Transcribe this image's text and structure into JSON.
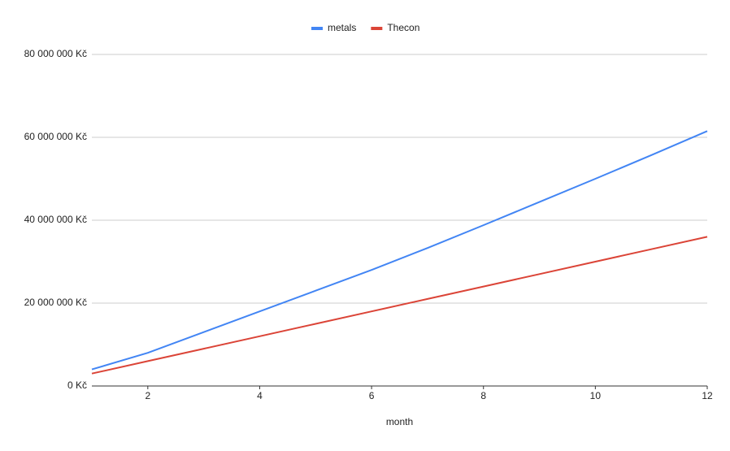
{
  "chart_data": {
    "type": "line",
    "x": [
      1,
      2,
      3,
      4,
      5,
      6,
      7,
      8,
      9,
      10,
      11,
      12
    ],
    "series": [
      {
        "name": "metals",
        "color": "#4285f4",
        "values": [
          4000000,
          8000000,
          13000000,
          18000000,
          23000000,
          28000000,
          33300000,
          38800000,
          44400000,
          50000000,
          55700000,
          61500000
        ]
      },
      {
        "name": "Thecon",
        "color": "#db4437",
        "values": [
          3000000,
          6000000,
          9000000,
          12000000,
          15000000,
          18000000,
          21000000,
          24000000,
          27000000,
          30000000,
          33000000,
          36000000
        ]
      }
    ],
    "x_label": "month",
    "xlim": [
      1,
      12
    ],
    "xticks": [
      2,
      4,
      6,
      8,
      10,
      12
    ],
    "ylim": [
      0,
      80000000
    ],
    "yticks": [
      {
        "value": 0,
        "label": "0 Kč"
      },
      {
        "value": 20000000,
        "label": "20 000 000 Kč"
      },
      {
        "value": 40000000,
        "label": "40 000 000 Kč"
      },
      {
        "value": 60000000,
        "label": "60 000 000 Kč"
      },
      {
        "value": 80000000,
        "label": "80 000 000 Kč"
      }
    ],
    "grid": true,
    "legend": "top"
  }
}
